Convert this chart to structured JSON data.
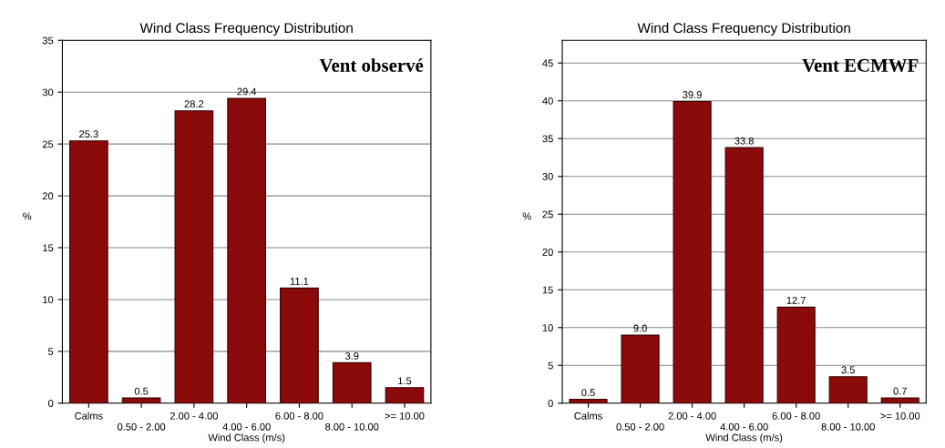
{
  "chart_data": [
    {
      "type": "bar",
      "title": "Wind Class Frequency Distribution",
      "xlabel": "Wind Class (m/s)",
      "ylabel": "%",
      "categories": [
        "Calms",
        "0.50 - 2.00",
        "2.00 - 4.00",
        "4.00 - 6.00",
        "6.00 - 8.00",
        "8.00 - 10.00",
        ">= 10.00"
      ],
      "values": [
        25.3,
        0.5,
        28.2,
        29.4,
        11.1,
        3.9,
        1.5
      ],
      "color": "#8b0a0a",
      "value_labels": [
        "25.3",
        "0.5",
        "28.2",
        "29.4",
        "11.1",
        "3.9",
        "1.5"
      ],
      "ylim": [
        0,
        35
      ],
      "yticks": [
        0,
        5,
        10,
        15,
        20,
        25,
        30,
        35
      ],
      "grid": "y",
      "annotations": [
        "Vent observé"
      ]
    },
    {
      "type": "bar",
      "title": "Wind Class Frequency Distribution",
      "xlabel": "Wind Class (m/s)",
      "ylabel": "%",
      "categories": [
        "Calms",
        "0.50 - 2.00",
        "2.00 - 4.00",
        "4.00 - 6.00",
        "6.00 - 8.00",
        "8.00 - 10.00",
        ">= 10.00"
      ],
      "values": [
        0.5,
        9.0,
        39.9,
        33.8,
        12.7,
        3.5,
        0.7
      ],
      "color": "#8b0a0a",
      "value_labels": [
        "0.5",
        "9.0",
        "39.9",
        "33.8",
        "12.7",
        "3.5",
        "0.7"
      ],
      "ylim": [
        0,
        48
      ],
      "yticks": [
        0,
        5,
        10,
        15,
        20,
        25,
        30,
        35,
        40,
        45
      ],
      "grid": "y",
      "annotations": [
        "Vent ECMWF"
      ]
    }
  ]
}
